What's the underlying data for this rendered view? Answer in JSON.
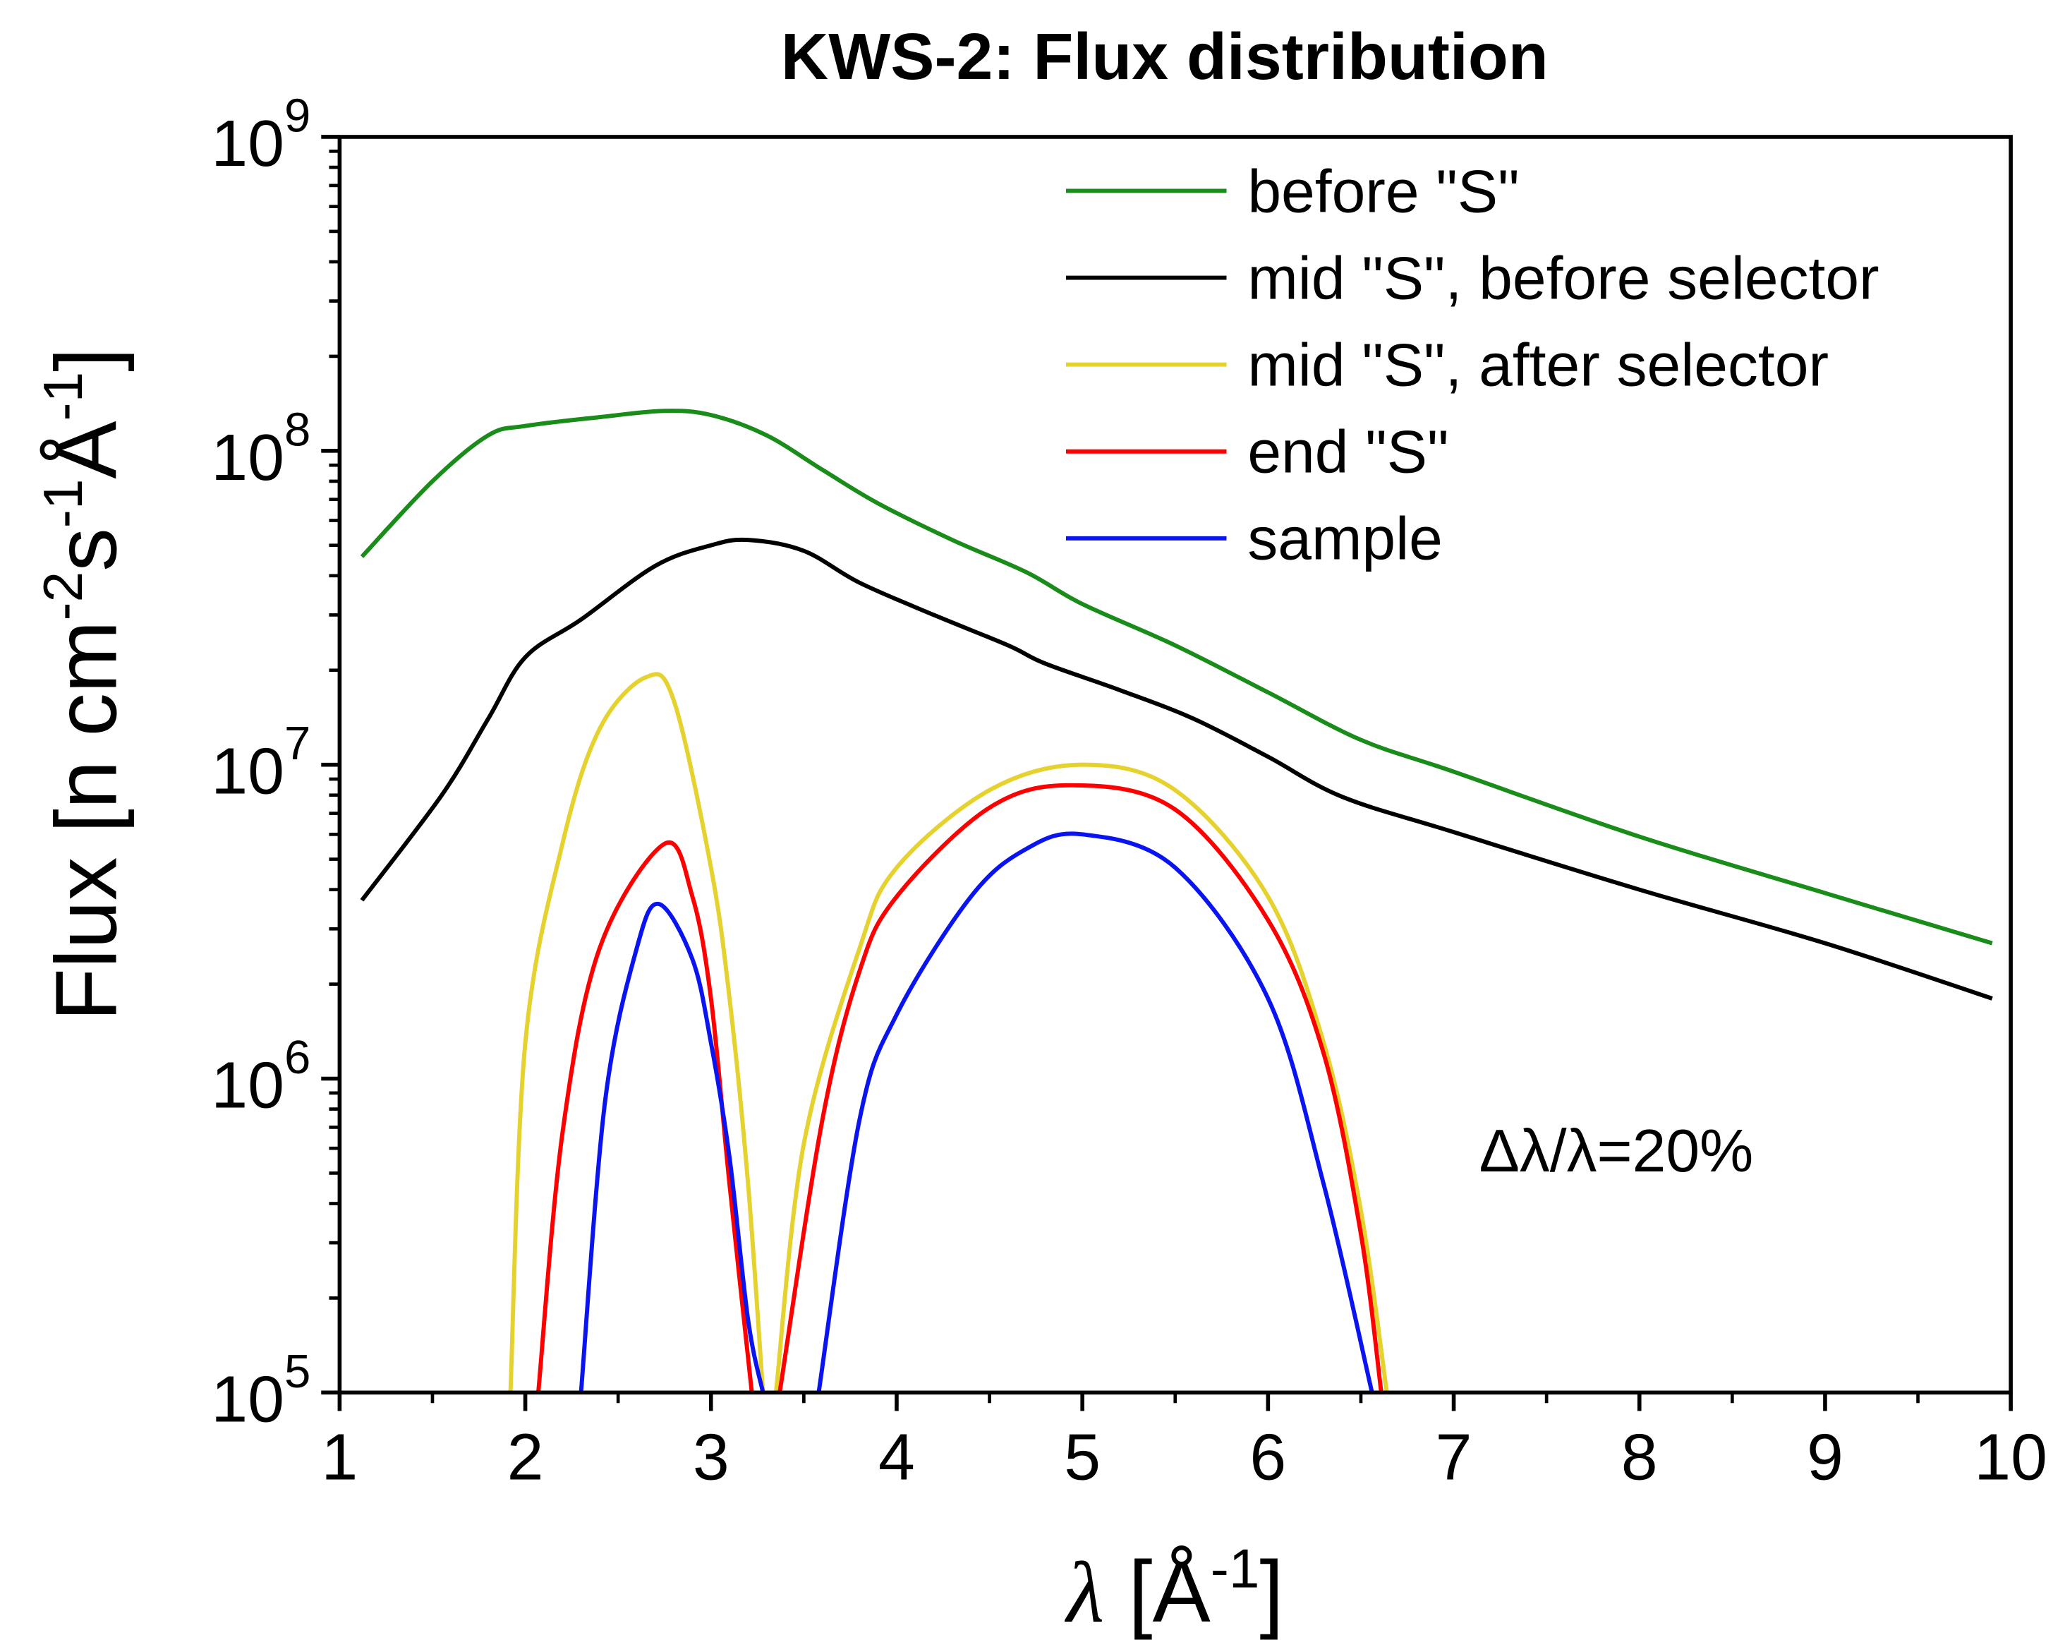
{
  "chart_data": {
    "type": "line",
    "title": "KWS-2: Flux distribution",
    "xlabel": "λ [Å-1]",
    "xlabel_parts": {
      "symbol": "λ",
      "unit_open": " [Å",
      "unit_exp": "-1",
      "unit_close": "]"
    },
    "ylabel": "Flux [n cm-2s-1Å-1]",
    "ylabel_parts": {
      "a": "Flux [n cm",
      "e1": "-2",
      "b": "s",
      "e2": "-1",
      "c": "Å",
      "e3": "-1",
      "d": "]"
    },
    "xlim": [
      1,
      10
    ],
    "ylim": [
      100000,
      1000000000
    ],
    "yscale": "log",
    "xticks": [
      "1",
      "2",
      "3",
      "4",
      "5",
      "6",
      "7",
      "8",
      "9",
      "10"
    ],
    "yticks": [
      {
        "base": "10",
        "exp": "5"
      },
      {
        "base": "10",
        "exp": "6"
      },
      {
        "base": "10",
        "exp": "7"
      },
      {
        "base": "10",
        "exp": "8"
      },
      {
        "base": "10",
        "exp": "9"
      }
    ],
    "grid": false,
    "legend_position": "top-right",
    "annotation": "Δλ/λ=20%",
    "series": [
      {
        "name": "before \"S\"",
        "color": "#1a8c1a",
        "segments": [
          [
            [
              1.12,
              46000000.0
            ],
            [
              1.5,
              80000000.0
            ],
            [
              1.8,
              112000000.0
            ],
            [
              2.0,
              120000000.0
            ],
            [
              2.4,
              128000000.0
            ],
            [
              2.75,
              134000000.0
            ],
            [
              3.0,
              130000000.0
            ],
            [
              3.3,
              112000000.0
            ],
            [
              3.6,
              87000000.0
            ],
            [
              3.9,
              68000000.0
            ],
            [
              4.3,
              52000000.0
            ],
            [
              4.7,
              41000000.0
            ],
            [
              5.0,
              32500000.0
            ],
            [
              5.5,
              24000000.0
            ],
            [
              6.0,
              17000000.0
            ],
            [
              6.5,
              12000000.0
            ],
            [
              7.0,
              9500000.0
            ],
            [
              8.0,
              5900000.0
            ],
            [
              9.0,
              3900000.0
            ],
            [
              9.9,
              2700000.0
            ]
          ]
        ]
      },
      {
        "name": "mid \"S\", before selector",
        "color": "#000000",
        "segments": [
          [
            [
              1.12,
              3700000.0
            ],
            [
              1.55,
              8000000.0
            ],
            [
              1.8,
              14000000.0
            ],
            [
              2.0,
              22000000.0
            ],
            [
              2.3,
              29000000.0
            ],
            [
              2.7,
              43000000.0
            ],
            [
              3.0,
              50000000.0
            ],
            [
              3.2,
              52000000.0
            ],
            [
              3.5,
              48000000.0
            ],
            [
              3.8,
              38000000.0
            ],
            [
              4.2,
              30000000.0
            ],
            [
              4.6,
              24000000.0
            ],
            [
              4.8,
              21000000.0
            ],
            [
              5.2,
              17300000.0
            ],
            [
              5.6,
              14000000.0
            ],
            [
              6.0,
              10600000.0
            ],
            [
              6.4,
              7900000.0
            ],
            [
              7.0,
              6100000.0
            ],
            [
              8.0,
              4000000.0
            ],
            [
              9.0,
              2700000.0
            ],
            [
              9.9,
              1800000.0
            ]
          ]
        ]
      },
      {
        "name": "mid \"S\", after selector",
        "color": "#e6d22e",
        "segments": [
          [
            [
              1.92,
              100000.0
            ],
            [
              2.0,
              1300000.0
            ],
            [
              2.2,
              5600000.0
            ],
            [
              2.4,
              13000000.0
            ],
            [
              2.65,
              19000000.0
            ],
            [
              2.8,
              16000000.0
            ],
            [
              3.0,
              4700000.0
            ],
            [
              3.1,
              1800000.0
            ],
            [
              3.2,
              460000.0
            ],
            [
              3.28,
              100000.0
            ]
          ],
          [
            [
              3.35,
              100000.0
            ],
            [
              3.5,
              620000.0
            ],
            [
              3.8,
              2600000.0
            ],
            [
              4.0,
              4700000.0
            ],
            [
              4.5,
              8300000.0
            ],
            [
              5.0,
              10000000.0
            ],
            [
              5.5,
              8300000.0
            ],
            [
              6.0,
              3800000.0
            ],
            [
              6.3,
              1300000.0
            ],
            [
              6.5,
              380000.0
            ],
            [
              6.64,
              100000.0
            ]
          ]
        ]
      },
      {
        "name": "end \"S\"",
        "color": "#ff0000",
        "segments": [
          [
            [
              2.07,
              100000.0
            ],
            [
              2.2,
              670000.0
            ],
            [
              2.4,
              2600000.0
            ],
            [
              2.75,
              5600000.0
            ],
            [
              2.9,
              3800000.0
            ],
            [
              3.0,
              1800000.0
            ],
            [
              3.1,
              460000.0
            ],
            [
              3.22,
              100000.0
            ]
          ],
          [
            [
              3.37,
              100000.0
            ],
            [
              3.6,
              740000.0
            ],
            [
              3.8,
              2200000.0
            ],
            [
              4.0,
              3800000.0
            ],
            [
              4.5,
              7300000.0
            ],
            [
              4.95,
              8600000.0
            ],
            [
              5.5,
              7200000.0
            ],
            [
              6.0,
              3200000.0
            ],
            [
              6.3,
              1200000.0
            ],
            [
              6.5,
              320000.0
            ],
            [
              6.61,
              100000.0
            ]
          ]
        ]
      },
      {
        "name": "sample",
        "color": "#0a14f0",
        "segments": [
          [
            [
              2.3,
              100000.0
            ],
            [
              2.43,
              850000.0
            ],
            [
              2.6,
              2600000.0
            ],
            [
              2.72,
              3600000.0
            ],
            [
              2.9,
              2400000.0
            ],
            [
              3.0,
              1300000.0
            ],
            [
              3.1,
              560000.0
            ],
            [
              3.2,
              170000.0
            ],
            [
              3.28,
              100000.0
            ]
          ],
          [
            [
              3.58,
              100000.0
            ],
            [
              3.8,
              740000.0
            ],
            [
              4.0,
              1600000.0
            ],
            [
              4.4,
              3800000.0
            ],
            [
              4.7,
              5400000.0
            ],
            [
              5.0,
              6000000.0
            ],
            [
              5.5,
              4700000.0
            ],
            [
              6.0,
              1800000.0
            ],
            [
              6.3,
              460000.0
            ],
            [
              6.56,
              100000.0
            ]
          ]
        ]
      }
    ]
  }
}
